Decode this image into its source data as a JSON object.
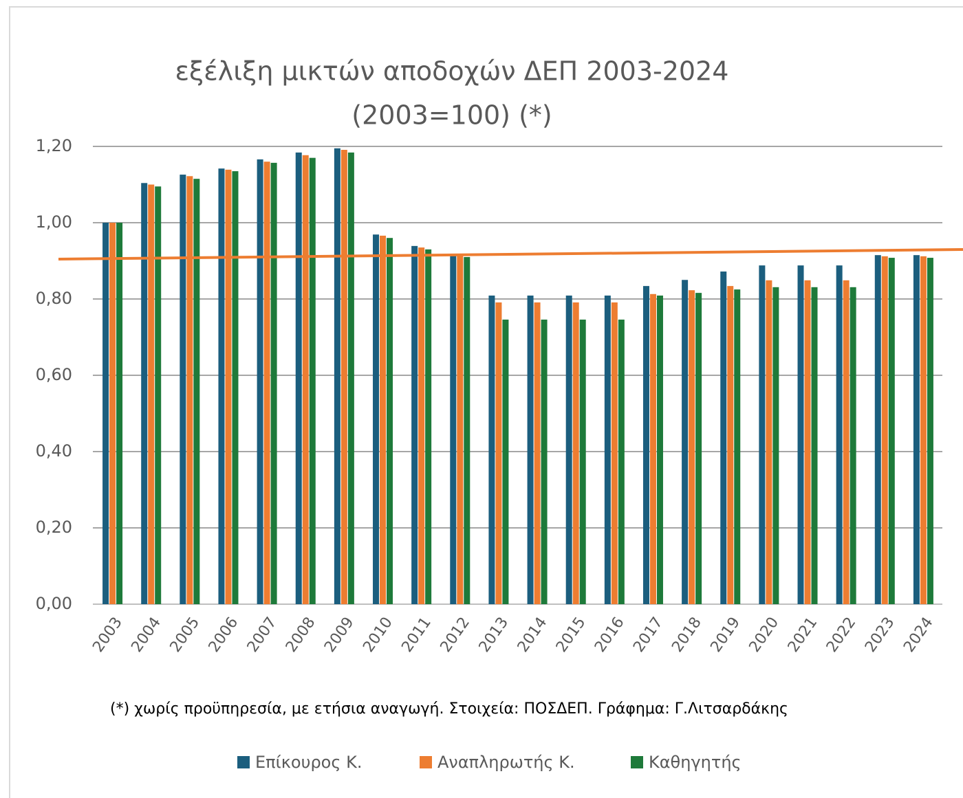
{
  "chart_data": {
    "type": "bar",
    "title": [
      "εξέλιξη μικτών αποδοχών ΔΕΠ 2003-2024",
      "(2003=100) (*)"
    ],
    "note": "(*) χωρίς προϋπηρεσία, με ετήσια αναγωγή. Στοιχεία: ΠΟΣΔΕΠ. Γράφημα: Γ.Λιτσαρδάκης",
    "categories": [
      "2003",
      "2004",
      "2005",
      "2006",
      "2007",
      "2008",
      "2009",
      "2010",
      "2011",
      "2012",
      "2013",
      "2014",
      "2015",
      "2016",
      "2017",
      "2018",
      "2019",
      "2020",
      "2021",
      "2022",
      "2023",
      "2024"
    ],
    "series": [
      {
        "name": "Επίκουρος Κ.",
        "color": "#1b5e7e",
        "values": [
          1.0,
          1.104,
          1.126,
          1.142,
          1.166,
          1.184,
          1.195,
          0.969,
          0.939,
          0.917,
          0.809,
          0.809,
          0.809,
          0.809,
          0.834,
          0.85,
          0.872,
          0.888,
          0.888,
          0.888,
          0.915,
          0.915
        ]
      },
      {
        "name": "Αναπληρωτής Κ.",
        "color": "#ed7d31",
        "values": [
          1.0,
          1.1,
          1.122,
          1.139,
          1.16,
          1.177,
          1.191,
          0.966,
          0.935,
          0.914,
          0.791,
          0.791,
          0.791,
          0.791,
          0.813,
          0.823,
          0.834,
          0.849,
          0.849,
          0.849,
          0.912,
          0.912
        ]
      },
      {
        "name": "Καθηγητής",
        "color": "#1e7a3a",
        "values": [
          1.0,
          1.095,
          1.115,
          1.135,
          1.157,
          1.17,
          1.184,
          0.96,
          0.93,
          0.91,
          0.746,
          0.746,
          0.746,
          0.746,
          0.809,
          0.816,
          0.825,
          0.831,
          0.831,
          0.831,
          0.908,
          0.908
        ]
      }
    ],
    "ylim": [
      0,
      1.2
    ],
    "yticks": [
      {
        "value": 0,
        "label": "0,00"
      },
      {
        "value": 0.2,
        "label": "0,20"
      },
      {
        "value": 0.4,
        "label": "0,40"
      },
      {
        "value": 0.6,
        "label": "0,60"
      },
      {
        "value": 0.8,
        "label": "0,80"
      },
      {
        "value": 1.0,
        "label": "1,00"
      },
      {
        "value": 1.2,
        "label": "1,20"
      }
    ],
    "grid": true,
    "legend": "bottom"
  }
}
